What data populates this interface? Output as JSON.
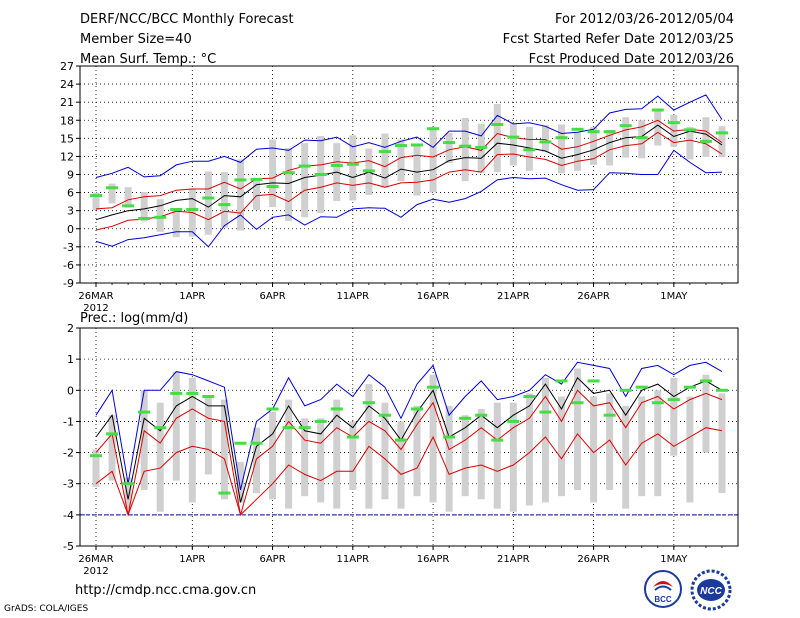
{
  "header": {
    "left": [
      "DERF/NCC/BCC Monthly Forecast",
      "Member Size=40",
      "Mean Surf. Temp.: °C"
    ],
    "right": [
      "For 2012/03/26-2012/05/04",
      "Fcst Started Refer Date 2012/03/25",
      "Fcst Produced Date 2012/03/26"
    ]
  },
  "footer": {
    "url": "http://cmdp.ncc.cma.gov.cn",
    "credit": "GrADS: COLA/IGES"
  },
  "logos": {
    "bcc": "BCC",
    "ncc": "NCC"
  },
  "colors": {
    "envelope": "#0000dd",
    "mean": "#000000",
    "lower": "#dd0000",
    "member": "#44dd44",
    "bar": "#d0d0d0",
    "floor": "#0000aa"
  },
  "chart_data": [
    {
      "type": "line",
      "title": "Mean Surf. Temp.: °C",
      "ylim": [
        -9,
        27
      ],
      "yticks": [
        "27",
        "24",
        "21",
        "18",
        "15",
        "12",
        "9",
        "6",
        "3",
        "0",
        "-3",
        "-6",
        "-9"
      ],
      "xticks": [
        {
          "day": 1,
          "label": "26MAR",
          "sub": "2012"
        },
        {
          "day": 7,
          "label": "1APR"
        },
        {
          "day": 12,
          "label": "6APR"
        },
        {
          "day": 17,
          "label": "11APR"
        },
        {
          "day": 22,
          "label": "16APR"
        },
        {
          "day": 27,
          "label": "21APR"
        },
        {
          "day": 32,
          "label": "26APR"
        },
        {
          "day": 37,
          "label": "1MAY"
        }
      ],
      "days": 40,
      "series": [
        {
          "name": "max",
          "values": [
            -2.1,
            -2.9,
            -1.8,
            -1.5,
            -1.0,
            -0.5,
            -0.5,
            -3.0,
            0.5,
            2.3,
            -0.1,
            1.9,
            2.3,
            0.6,
            2.0,
            1.9,
            3.3,
            3.5,
            3.4,
            1.9,
            4.0,
            4.9,
            4.4,
            5.0,
            6.2,
            8.1,
            8.5,
            8.3,
            8.4,
            7.3,
            6.4,
            6.5,
            9.3,
            9.2,
            9.0,
            9.0,
            13.0,
            11.0,
            9.3,
            9.4
          ]
        },
        {
          "name": "upper",
          "values": [
            8.5,
            9.2,
            10.2,
            8.6,
            8.8,
            10.6,
            11.2,
            11.2,
            12.0,
            11.0,
            13.2,
            13.4,
            13.0,
            14.7,
            14.6,
            15.2,
            13.6,
            14.3,
            13.5,
            14.5,
            15.2,
            13.5,
            16.2,
            16.2,
            15.4,
            18.8,
            17.4,
            17.6,
            17.0,
            15.8,
            16.0,
            16.5,
            19.2,
            19.8,
            19.9,
            22.0,
            19.7,
            21.0,
            22.2,
            18.1
          ]
        },
        {
          "name": "lower",
          "values": [
            3.3,
            3.5,
            4.8,
            5.3,
            5.5,
            6.4,
            6.6,
            6.6,
            7.7,
            6.6,
            8.3,
            8.4,
            9.7,
            10.4,
            10.6,
            11.1,
            10.9,
            11.3,
            10.3,
            11.8,
            12.2,
            11.9,
            13.1,
            13.6,
            13.0,
            15.8,
            15.1,
            14.8,
            14.8,
            13.2,
            13.6,
            14.5,
            15.5,
            16.4,
            16.9,
            18.0,
            16.2,
            16.5,
            16.2,
            14.3
          ]
        },
        {
          "name": "mean",
          "values": [
            1.5,
            2.3,
            3.0,
            3.3,
            3.8,
            4.7,
            5.0,
            3.6,
            5.5,
            5.3,
            7.3,
            7.6,
            7.5,
            8.5,
            8.9,
            9.4,
            8.5,
            9.4,
            8.4,
            9.9,
            9.4,
            9.8,
            11.3,
            11.8,
            11.7,
            14.2,
            13.9,
            13.4,
            12.9,
            11.7,
            12.3,
            13.1,
            14.3,
            15.1,
            15.3,
            17.2,
            15.3,
            16.2,
            15.7,
            13.9
          ]
        },
        {
          "name": "bottom",
          "values": [
            -0.2,
            0.4,
            1.4,
            1.6,
            2.0,
            2.9,
            2.7,
            1.5,
            2.9,
            2.6,
            5.5,
            5.7,
            4.5,
            6.4,
            6.9,
            7.6,
            7.2,
            7.6,
            6.9,
            7.6,
            7.7,
            8.1,
            9.4,
            9.8,
            9.4,
            12.3,
            12.4,
            11.9,
            11.5,
            10.5,
            11.2,
            11.6,
            13.1,
            13.8,
            14.1,
            16.0,
            14.3,
            14.7,
            14.1,
            12.4
          ]
        }
      ],
      "bars": [
        [
          3.1,
          6.0
        ],
        [
          4.2,
          7.5
        ],
        [
          3.5,
          6.9
        ],
        [
          1.2,
          6.1
        ],
        [
          -0.5,
          4.9
        ],
        [
          -1.4,
          3.4
        ],
        [
          -1.3,
          6.7
        ],
        [
          -1.0,
          9.5
        ],
        [
          0.2,
          9.4
        ],
        [
          -0.3,
          11.5
        ],
        [
          3.1,
          8.0
        ],
        [
          3.6,
          14.8
        ],
        [
          1.3,
          13.4
        ],
        [
          1.9,
          14.2
        ],
        [
          2.6,
          15.4
        ],
        [
          4.6,
          14.2
        ],
        [
          4.7,
          15.5
        ],
        [
          5.6,
          13.3
        ],
        [
          6.8,
          15.8
        ],
        [
          7.9,
          14.8
        ],
        [
          5.5,
          14.1
        ],
        [
          6.0,
          16.5
        ],
        [
          10.9,
          15.9
        ],
        [
          7.9,
          18.4
        ],
        [
          9.3,
          17.4
        ],
        [
          9.4,
          20.7
        ],
        [
          10.5,
          17.6
        ],
        [
          9.6,
          16.9
        ],
        [
          12.8,
          17.2
        ],
        [
          9.2,
          17.3
        ],
        [
          9.6,
          16.0
        ],
        [
          10.6,
          16.9
        ],
        [
          10.5,
          16.4
        ],
        [
          11.8,
          18.5
        ],
        [
          11.7,
          18.0
        ],
        [
          13.8,
          19.9
        ],
        [
          13.6,
          18.9
        ],
        [
          11.5,
          16.9
        ],
        [
          11.9,
          18.5
        ],
        [
          11.9,
          17.0
        ]
      ],
      "members": [
        5.5,
        6.8,
        3.8,
        1.7,
        1.9,
        3.2,
        3.2,
        5.1,
        4.0,
        8.1,
        8.2,
        7.0,
        9.3,
        10.4,
        9.0,
        10.5,
        10.7,
        9.6,
        12.8,
        13.8,
        13.9,
        16.6,
        14.3,
        13.7,
        13.5,
        17.3,
        15.2,
        13.1,
        14.4,
        15.1,
        16.5,
        16.1,
        16.1,
        17.1,
        15.1,
        19.7,
        17.6,
        16.4,
        14.5,
        15.9
      ]
    },
    {
      "type": "line",
      "title": "Prec.: log(mm/d)",
      "ylim": [
        -5,
        2
      ],
      "yticks": [
        "2",
        "1",
        "0",
        "-1",
        "-2",
        "-3",
        "-4",
        "-5"
      ],
      "xticks": [
        {
          "day": 1,
          "label": "26MAR",
          "sub": "2012"
        },
        {
          "day": 7,
          "label": "1APR"
        },
        {
          "day": 12,
          "label": "6APR"
        },
        {
          "day": 17,
          "label": "11APR"
        },
        {
          "day": 22,
          "label": "16APR"
        },
        {
          "day": 27,
          "label": "21APR"
        },
        {
          "day": 32,
          "label": "26APR"
        },
        {
          "day": 37,
          "label": "1MAY"
        }
      ],
      "days": 40,
      "floor": -4,
      "series": [
        {
          "name": "max",
          "values": [
            -0.8,
            0.0,
            -3.0,
            0.0,
            0.0,
            0.6,
            0.5,
            0.3,
            0.1,
            -3.2,
            -1.0,
            -0.6,
            0.4,
            -0.5,
            -0.3,
            0.2,
            -0.2,
            0.5,
            0.1,
            -0.9,
            0.2,
            0.8,
            -0.8,
            -0.2,
            0.3,
            -0.3,
            -0.2,
            0.0,
            0.5,
            0.2,
            0.9,
            0.8,
            0.7,
            -0.2,
            0.7,
            0.8,
            0.5,
            0.8,
            0.9,
            0.6
          ]
        },
        {
          "name": "mean",
          "values": [
            -1.5,
            -0.8,
            -3.5,
            -0.9,
            -1.3,
            -0.5,
            -0.2,
            -0.5,
            -0.5,
            -3.6,
            -1.8,
            -1.4,
            -0.5,
            -1.3,
            -1.4,
            -0.8,
            -1.2,
            -0.5,
            -0.9,
            -1.6,
            -0.7,
            0.0,
            -1.5,
            -1.2,
            -0.8,
            -1.2,
            -0.8,
            -0.5,
            0.2,
            -0.6,
            0.4,
            -0.1,
            0.0,
            -0.8,
            0.0,
            0.2,
            -0.2,
            0.1,
            0.3,
            0.0
          ]
        },
        {
          "name": "lower",
          "values": [
            -2.0,
            -1.4,
            -4.0,
            -1.3,
            -1.7,
            -0.9,
            -0.6,
            -0.9,
            -1.0,
            -4.0,
            -2.2,
            -1.8,
            -1.0,
            -1.6,
            -1.7,
            -1.2,
            -1.5,
            -1.0,
            -1.3,
            -1.9,
            -1.1,
            -0.4,
            -1.9,
            -1.6,
            -1.2,
            -1.6,
            -1.2,
            -0.9,
            -0.2,
            -1.0,
            0.0,
            -0.5,
            -0.4,
            -1.2,
            -0.4,
            -0.2,
            -0.6,
            -0.3,
            -0.1,
            -0.3
          ]
        },
        {
          "name": "min",
          "values": [
            -3.0,
            -2.6,
            -4.0,
            -2.6,
            -2.5,
            -2.0,
            -1.8,
            -1.9,
            -2.2,
            -4.0,
            -3.5,
            -3.0,
            -2.4,
            -2.7,
            -2.9,
            -2.6,
            -2.6,
            -1.8,
            -2.2,
            -2.7,
            -2.5,
            -1.5,
            -2.7,
            -2.5,
            -2.4,
            -2.6,
            -2.4,
            -2.0,
            -1.5,
            -2.2,
            -1.4,
            -2.0,
            -1.6,
            -2.4,
            -1.7,
            -1.4,
            -1.8,
            -1.5,
            -1.2,
            -1.3
          ]
        }
      ],
      "bars": [
        [
          -3.1,
          -1.9
        ],
        [
          -2.9,
          -0.8
        ],
        [
          -3.8,
          -2.8
        ],
        [
          -3.2,
          0.0
        ],
        [
          -3.9,
          -0.4
        ],
        [
          -2.9,
          0.6
        ],
        [
          -3.6,
          0.4
        ],
        [
          -2.7,
          -0.2
        ],
        [
          -3.5,
          -0.3
        ],
        [
          -3.6,
          -2.3
        ],
        [
          -3.3,
          -1.2
        ],
        [
          -3.5,
          -0.7
        ],
        [
          -3.8,
          -0.3
        ],
        [
          -3.4,
          -0.9
        ],
        [
          -3.6,
          -0.9
        ],
        [
          -3.8,
          -0.3
        ],
        [
          -3.2,
          -1.0
        ],
        [
          -3.8,
          0.2
        ],
        [
          -3.5,
          -0.4
        ],
        [
          -3.8,
          -1.0
        ],
        [
          -3.4,
          -0.5
        ],
        [
          -3.6,
          0.5
        ],
        [
          -3.9,
          -0.5
        ],
        [
          -3.4,
          -0.8
        ],
        [
          -3.5,
          -0.6
        ],
        [
          -3.8,
          -0.4
        ],
        [
          -3.9,
          -0.4
        ],
        [
          -3.7,
          -0.1
        ],
        [
          -3.6,
          0.4
        ],
        [
          -3.4,
          -0.2
        ],
        [
          -3.2,
          0.7
        ],
        [
          -3.6,
          -0.2
        ],
        [
          -3.2,
          -0.1
        ],
        [
          -3.8,
          -0.5
        ],
        [
          -3.4,
          -0.2
        ],
        [
          -3.4,
          0.0
        ],
        [
          -2.1,
          0.4
        ],
        [
          -3.6,
          -0.2
        ],
        [
          -2.0,
          0.5
        ],
        [
          -3.3,
          -0.1
        ]
      ],
      "members": [
        -2.1,
        -1.4,
        -3.0,
        -0.7,
        -1.2,
        -0.1,
        -0.1,
        -0.2,
        -3.3,
        -1.7,
        -1.7,
        -0.6,
        -1.2,
        -1.2,
        -1.0,
        -0.6,
        -1.5,
        -0.4,
        -0.8,
        -1.6,
        -0.6,
        0.1,
        -1.5,
        -0.9,
        -0.8,
        -1.6,
        -1.0,
        -0.2,
        -0.7,
        0.3,
        -0.4,
        0.3,
        -0.8,
        0.0,
        0.1,
        -0.4,
        -0.3,
        0.1,
        0.3,
        0.0
      ]
    }
  ]
}
